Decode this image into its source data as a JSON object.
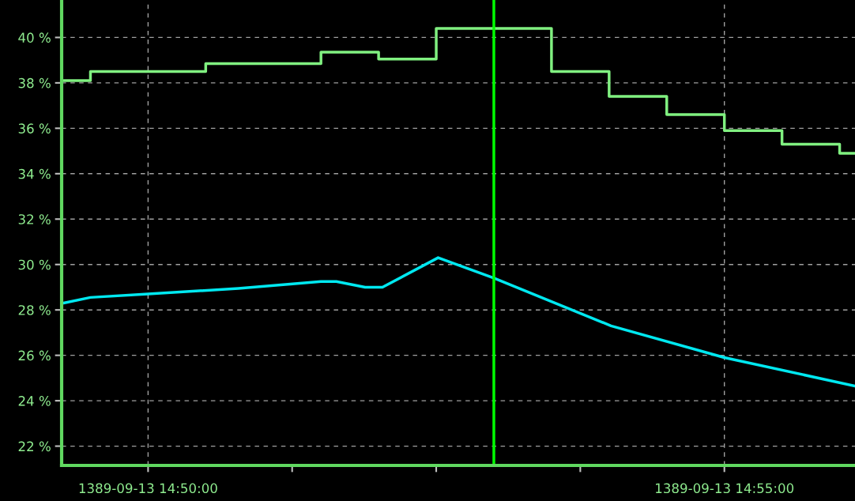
{
  "chart_data": {
    "type": "line",
    "xlim": [
      "1389-09-13T14:49:15",
      "1389-09-13T14:56:08"
    ],
    "ylim": [
      21.15,
      41.65
    ],
    "xticks": [
      {
        "value": "1389-09-13T14:50:00",
        "label": "1389-09-13 14:50:00"
      },
      {
        "value": "1389-09-13T14:51:15",
        "label": null
      },
      {
        "value": "1389-09-13T14:52:30",
        "label": null
      },
      {
        "value": "1389-09-13T14:53:45",
        "label": null
      },
      {
        "value": "1389-09-13T14:55:00",
        "label": "1389-09-13 14:55:00"
      }
    ],
    "yticks": [
      {
        "value": 22,
        "label": "22 %"
      },
      {
        "value": 24,
        "label": "24 %"
      },
      {
        "value": 26,
        "label": "26 %"
      },
      {
        "value": 28,
        "label": "28 %"
      },
      {
        "value": 30,
        "label": "30 %"
      },
      {
        "value": 32,
        "label": "32 %"
      },
      {
        "value": 34,
        "label": "34 %"
      },
      {
        "value": 36,
        "label": "36 %"
      },
      {
        "value": 38,
        "label": "38 %"
      },
      {
        "value": 40,
        "label": "40 %"
      }
    ],
    "grid": true,
    "marker": "none",
    "line_style": "solid",
    "series": [
      {
        "type": "step",
        "color": "#80f080",
        "x": [
          "1389-09-13T14:49:15",
          "1389-09-13T14:49:30",
          "1389-09-13T14:50:30",
          "1389-09-13T14:51:30",
          "1389-09-13T14:52:00",
          "1389-09-13T14:52:30",
          "1389-09-13T14:53:30",
          "1389-09-13T14:54:00",
          "1389-09-13T14:54:30",
          "1389-09-13T14:55:00",
          "1389-09-13T14:55:30",
          "1389-09-13T14:56:00",
          "1389-09-13T14:56:08"
        ],
        "values": [
          38.1,
          38.5,
          38.85,
          39.35,
          39.05,
          40.4,
          38.5,
          37.4,
          36.6,
          35.9,
          35.3,
          34.9,
          34.9
        ]
      },
      {
        "color": "#00e8f0",
        "x": [
          "1389-09-13T14:49:16",
          "1389-09-13T14:49:30",
          "1389-09-13T14:50:00",
          "1389-09-13T14:50:47",
          "1389-09-13T14:51:30",
          "1389-09-13T14:51:38",
          "1389-09-13T14:51:53",
          "1389-09-13T14:52:02",
          "1389-09-13T14:52:31",
          "1389-09-13T14:53:00",
          "1389-09-13T14:54:01",
          "1389-09-13T14:55:00",
          "1389-09-13T14:56:08"
        ],
        "values": [
          28.3,
          28.55,
          28.7,
          28.95,
          29.25,
          29.25,
          29.0,
          29.0,
          30.3,
          29.4,
          27.3,
          25.9,
          24.65
        ]
      }
    ],
    "ref_lines": [
      {
        "axis": "x",
        "value": "1389-09-13T14:53:00",
        "label": null,
        "color": "#00ff00"
      }
    ]
  }
}
